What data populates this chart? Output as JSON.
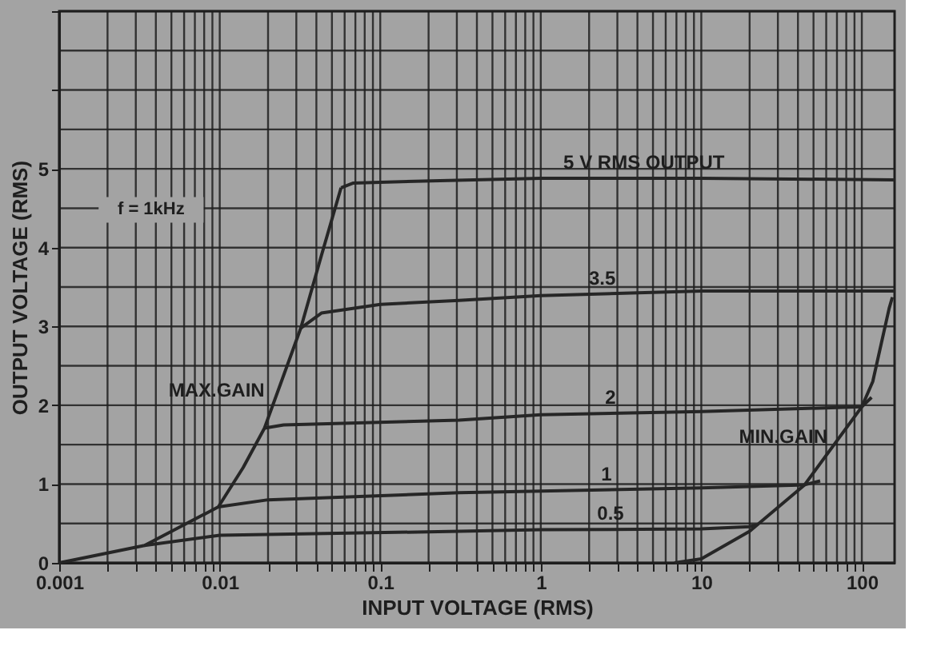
{
  "chart_data": {
    "type": "line",
    "xlabel": "INPUT VOLTAGE (RMS)",
    "ylabel": "OUTPUT VOLTAGE (RMS)",
    "log": "x",
    "grid": true,
    "marker": "none",
    "line_style": "solid",
    "xlim": [
      0.001,
      160
    ],
    "ylim": [
      0,
      7
    ],
    "xticks": [
      0.001,
      {
        "value": 0.002,
        "label": null
      },
      {
        "value": 0.003,
        "label": null
      },
      {
        "value": 0.004,
        "label": null
      },
      {
        "value": 0.005,
        "label": null
      },
      {
        "value": 0.006,
        "label": null
      },
      {
        "value": 0.007,
        "label": null
      },
      {
        "value": 0.008,
        "label": null
      },
      {
        "value": 0.009,
        "label": null
      },
      0.01,
      {
        "value": 0.02,
        "label": null
      },
      {
        "value": 0.03,
        "label": null
      },
      {
        "value": 0.04,
        "label": null
      },
      {
        "value": 0.05,
        "label": null
      },
      {
        "value": 0.06,
        "label": null
      },
      {
        "value": 0.07,
        "label": null
      },
      {
        "value": 0.08,
        "label": null
      },
      {
        "value": 0.09,
        "label": null
      },
      0.1,
      {
        "value": 0.2,
        "label": null
      },
      {
        "value": 0.3,
        "label": null
      },
      {
        "value": 0.4,
        "label": null
      },
      {
        "value": 0.5,
        "label": null
      },
      {
        "value": 0.6,
        "label": null
      },
      {
        "value": 0.7,
        "label": null
      },
      {
        "value": 0.8,
        "label": null
      },
      {
        "value": 0.9,
        "label": null
      },
      1,
      {
        "value": 2,
        "label": null
      },
      {
        "value": 3,
        "label": null
      },
      {
        "value": 4,
        "label": null
      },
      {
        "value": 5,
        "label": null
      },
      {
        "value": 6,
        "label": null
      },
      {
        "value": 7,
        "label": null
      },
      {
        "value": 8,
        "label": null
      },
      {
        "value": 9,
        "label": null
      },
      10,
      {
        "value": 20,
        "label": null
      },
      {
        "value": 30,
        "label": null
      },
      {
        "value": 40,
        "label": null
      },
      {
        "value": 50,
        "label": null
      },
      {
        "value": 60,
        "label": null
      },
      {
        "value": 70,
        "label": null
      },
      {
        "value": 80,
        "label": null
      },
      {
        "value": 90,
        "label": null
      },
      100
    ],
    "yticks": [
      0,
      {
        "value": 0.5,
        "label": null
      },
      1,
      {
        "value": 1.5,
        "label": null
      },
      2,
      {
        "value": 2.5,
        "label": null
      },
      3,
      {
        "value": 3.5,
        "label": null
      },
      4,
      {
        "value": 4.5,
        "label": null
      },
      5,
      {
        "value": 5.5,
        "label": null
      },
      {
        "value": 6,
        "label": null
      },
      {
        "value": 6.5,
        "label": null
      },
      {
        "value": 7,
        "label": null
      }
    ],
    "series": [
      {
        "name": "MAX.GAIN",
        "color": "#262626",
        "x": [
          0.001,
          0.0034,
          0.0098,
          0.014,
          0.019,
          0.032,
          0.043,
          0.057
        ],
        "values": [
          0,
          0.22,
          0.71,
          1.21,
          1.71,
          2.98,
          3.9,
          4.76
        ]
      },
      {
        "name": "5 V RMS OUTPUT",
        "color": "#262626",
        "x": [
          0.057,
          0.068,
          0.1,
          1,
          10,
          160
        ],
        "values": [
          4.76,
          4.82,
          4.83,
          4.88,
          4.88,
          4.86
        ]
      },
      {
        "name": "3.5",
        "color": "#262626",
        "x": [
          0.032,
          0.043,
          0.1,
          0.31,
          1,
          10,
          160
        ],
        "values": [
          2.98,
          3.17,
          3.28,
          3.33,
          3.39,
          3.45,
          3.45
        ]
      },
      {
        "name": "2",
        "color": "#262626",
        "x": [
          0.019,
          0.025,
          0.31,
          1,
          10,
          100,
          115
        ],
        "values": [
          1.71,
          1.75,
          1.81,
          1.88,
          1.92,
          1.98,
          2.1
        ]
      },
      {
        "name": "1",
        "color": "#262626",
        "x": [
          0.0098,
          0.02,
          0.31,
          1,
          10,
          44,
          55
        ],
        "values": [
          0.71,
          0.8,
          0.89,
          0.91,
          0.95,
          0.99,
          1.04
        ]
      },
      {
        "name": "0.5",
        "color": "#262626",
        "x": [
          0.0034,
          0.01,
          0.31,
          1,
          10,
          20,
          22
        ],
        "values": [
          0.22,
          0.35,
          0.4,
          0.42,
          0.43,
          0.46,
          0.48
        ]
      },
      {
        "name": "MIN.GAIN",
        "color": "#262626",
        "x": [
          6.8,
          10,
          20,
          44,
          100,
          117,
          148,
          155
        ],
        "values": [
          0,
          0.05,
          0.4,
          0.99,
          1.98,
          2.3,
          3.23,
          3.37
        ]
      }
    ],
    "annotations": [
      "f = 1kHz"
    ]
  }
}
